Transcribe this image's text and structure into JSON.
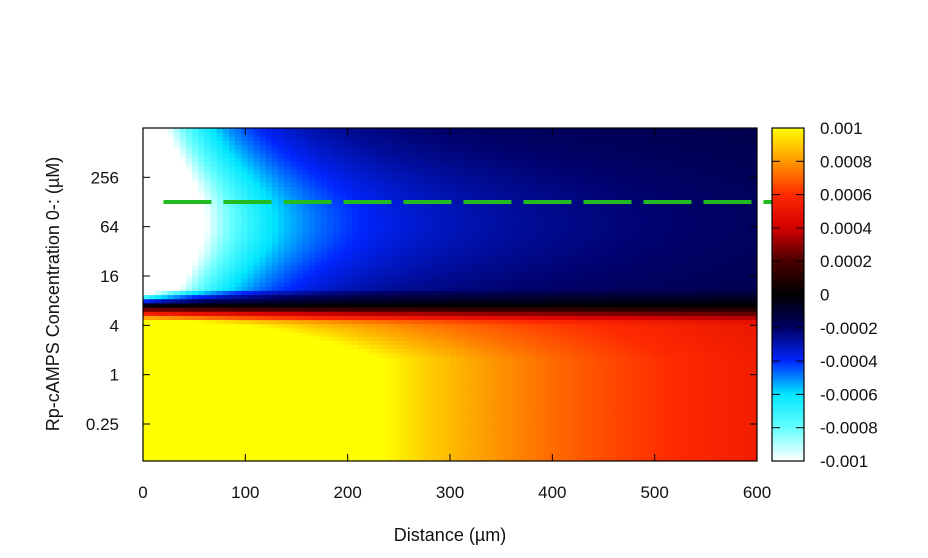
{
  "chart_data": {
    "type": "heatmap",
    "title": "",
    "xlabel": "Distance (µm)",
    "ylabel": "Rp-cAMPS Concentration 0-: (µM)",
    "x_ticks": [
      0,
      100,
      200,
      300,
      400,
      500,
      600
    ],
    "x_tick_labels": [
      "0",
      "100",
      "200",
      "300",
      "400",
      "500",
      "600"
    ],
    "xlim": [
      0,
      600
    ],
    "y_scale": "log2",
    "ylim": [
      0.0884,
      1024
    ],
    "y_ticks": [
      0.25,
      1,
      4,
      16,
      64,
      256
    ],
    "y_tick_labels": [
      "0.25",
      "1",
      "4",
      "16",
      "64",
      "256"
    ],
    "colorbar": {
      "range": [
        -0.001,
        0.001
      ],
      "ticks": [
        0.001,
        0.0008,
        0.0006,
        0.0004,
        0.0002,
        0,
        -0.0002,
        -0.0004,
        -0.0006,
        -0.0008,
        -0.001
      ],
      "tick_labels": [
        "0.001",
        "0.0008",
        "0.0006",
        "0.0004",
        "0.0002",
        "0",
        "-0.0002",
        "-0.0004",
        "-0.0006",
        "-0.0008",
        "-0.001"
      ],
      "colors": [
        "#ffff00",
        "#ff9900",
        "#ff2a00",
        "#d40000",
        "#4a0000",
        "#000000",
        "#000066",
        "#0026ff",
        "#00e6ff",
        "#66ffff",
        "#ffffff"
      ]
    },
    "sign_change_concentration": 7,
    "reference_line": {
      "y": 128,
      "color": "#22bb22",
      "style": "dashed",
      "x_range": [
        20,
        620
      ]
    },
    "grid": false
  }
}
